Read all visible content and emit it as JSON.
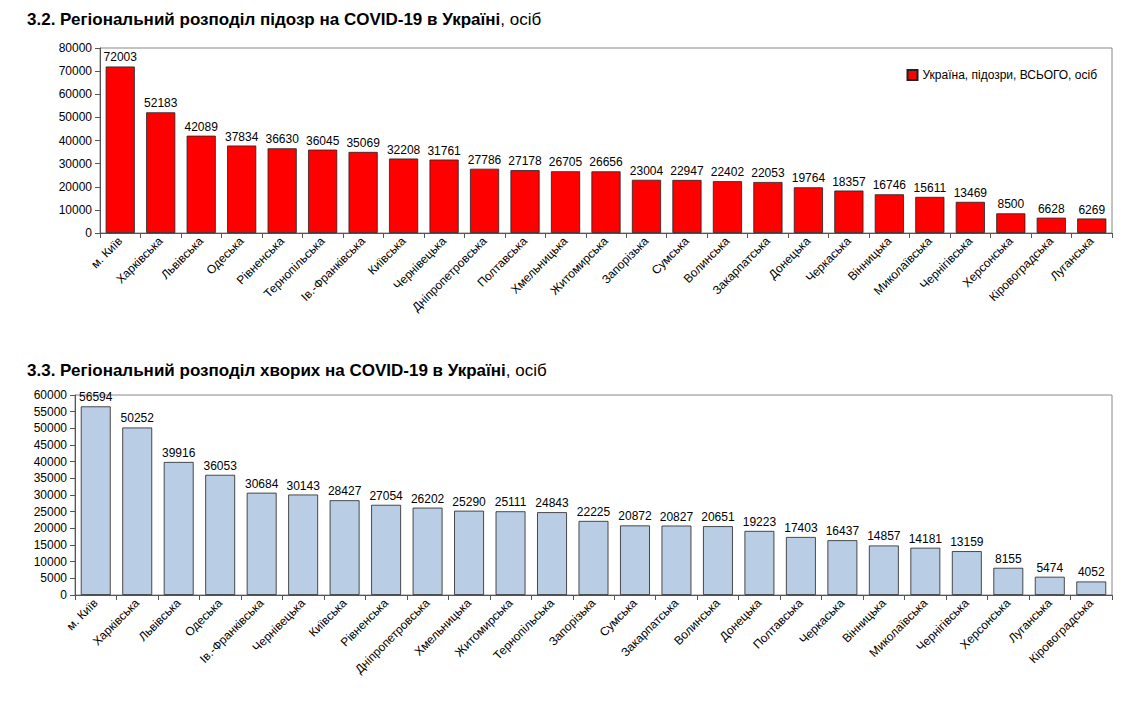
{
  "chart_data": [
    {
      "type": "bar",
      "title": "3.2. Регіональний розподіл підозр на COVID-19 в Україні, осіб",
      "categories": [
        "м. Київ",
        "Харківська",
        "Львівська",
        "Одеська",
        "Рівненська",
        "Тернопільська",
        "Ів.-Франківська",
        "Київська",
        "Чернівецька",
        "Дніпропетровська",
        "Полтавська",
        "Хмельницька",
        "Житомирська",
        "Запорізька",
        "Сумська",
        "Волинська",
        "Закарпатська",
        "Донецька",
        "Черкаська",
        "Вінницька",
        "Миколаївська",
        "Чернігівська",
        "Херсонська",
        "Кіровоградська",
        "Луганська"
      ],
      "series": [
        {
          "name": "Україна, підозри, ВСЬОГО, осіб",
          "color": "#ff0000",
          "values": [
            72003,
            52183,
            42089,
            37834,
            36630,
            36045,
            35069,
            32208,
            31761,
            27786,
            27178,
            26705,
            26656,
            23004,
            22947,
            22402,
            22053,
            19764,
            18357,
            16746,
            15611,
            13469,
            8500,
            6628,
            6269
          ]
        }
      ],
      "ylim": [
        0,
        80000
      ],
      "yticks": [
        0,
        10000,
        20000,
        30000,
        40000,
        50000,
        60000,
        70000,
        80000
      ],
      "grid": false,
      "legend": "top-right",
      "data_labels": true
    },
    {
      "type": "bar",
      "title": "3.3. Регіональний розподіл хворих на COVID-19 в Україні, осіб",
      "categories": [
        "м. Київ",
        "Харківська",
        "Львівська",
        "Одеська",
        "Ів.-Франківська",
        "Чернівецька",
        "Київська",
        "Рівненська",
        "Дніпропетровська",
        "Хмельницька",
        "Житомирська",
        "Тернопільська",
        "Запорізька",
        "Сумська",
        "Закарпатська",
        "Волинська",
        "Донецька",
        "Полтавська",
        "Черкаська",
        "Вінницька",
        "Миколаївська",
        "Чернігівська",
        "Херсонська",
        "Луганська",
        "Кіровоградська"
      ],
      "values": [
        56594,
        50252,
        39916,
        36053,
        30684,
        30143,
        28427,
        27054,
        26202,
        25290,
        25111,
        24843,
        22225,
        20872,
        20827,
        20651,
        19223,
        17403,
        16437,
        14857,
        14181,
        13159,
        8155,
        5474,
        4052
      ],
      "color": "#b9cde5",
      "ylim": [
        0,
        60000
      ],
      "yticks": [
        0,
        5000,
        10000,
        15000,
        20000,
        25000,
        30000,
        35000,
        40000,
        45000,
        50000,
        55000,
        60000
      ],
      "grid": false,
      "data_labels": true
    }
  ]
}
